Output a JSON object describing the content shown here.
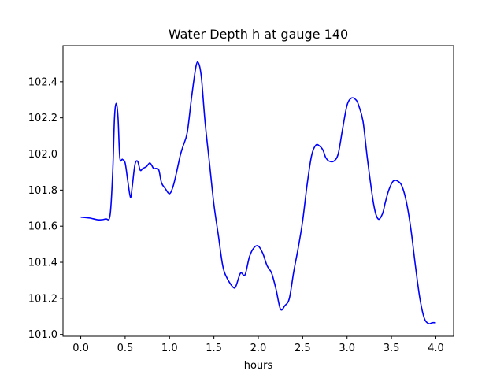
{
  "chart_data": {
    "type": "line",
    "title": "Water Depth h at gauge 140",
    "xlabel": "hours",
    "ylabel": "",
    "xlim": [
      -0.2,
      4.2
    ],
    "ylim": [
      100.99,
      102.6
    ],
    "x_ticks": [
      0.0,
      0.5,
      1.0,
      1.5,
      2.0,
      2.5,
      3.0,
      3.5,
      4.0
    ],
    "x_tick_labels": [
      "0.0",
      "0.5",
      "1.0",
      "1.5",
      "2.0",
      "2.5",
      "3.0",
      "3.5",
      "4.0"
    ],
    "y_ticks": [
      101.0,
      101.2,
      101.4,
      101.6,
      101.8,
      102.0,
      102.2,
      102.4
    ],
    "y_tick_labels": [
      "101.0",
      "101.2",
      "101.4",
      "101.6",
      "101.8",
      "102.0",
      "102.2",
      "102.4"
    ],
    "grid": false,
    "series": [
      {
        "color": "#0000ff",
        "x": [
          0.0,
          0.1,
          0.2,
          0.28,
          0.33,
          0.36,
          0.38,
          0.4,
          0.42,
          0.44,
          0.47,
          0.5,
          0.53,
          0.56,
          0.58,
          0.61,
          0.64,
          0.67,
          0.7,
          0.74,
          0.78,
          0.82,
          0.85,
          0.88,
          0.91,
          0.95,
          1.0,
          1.04,
          1.08,
          1.12,
          1.15,
          1.2,
          1.25,
          1.3,
          1.33,
          1.36,
          1.4,
          1.45,
          1.5,
          1.55,
          1.6,
          1.65,
          1.72,
          1.75,
          1.8,
          1.85,
          1.9,
          1.95,
          2.0,
          2.05,
          2.1,
          2.15,
          2.2,
          2.25,
          2.3,
          2.35,
          2.4,
          2.45,
          2.5,
          2.55,
          2.6,
          2.65,
          2.7,
          2.73,
          2.76,
          2.8,
          2.85,
          2.9,
          2.95,
          3.0,
          3.05,
          3.1,
          3.13,
          3.18,
          3.23,
          3.3,
          3.35,
          3.4,
          3.43,
          3.47,
          3.52,
          3.57,
          3.62,
          3.67,
          3.72,
          3.77,
          3.82,
          3.87,
          3.92,
          3.96,
          4.0
        ],
        "y": [
          101.65,
          101.645,
          101.635,
          101.64,
          101.66,
          101.9,
          102.2,
          102.28,
          102.2,
          101.98,
          101.97,
          101.95,
          101.85,
          101.76,
          101.82,
          101.94,
          101.96,
          101.91,
          101.92,
          101.93,
          101.95,
          101.92,
          101.92,
          101.91,
          101.84,
          101.81,
          101.78,
          101.82,
          101.9,
          101.99,
          102.04,
          102.12,
          102.32,
          102.49,
          102.5,
          102.42,
          102.18,
          101.95,
          101.72,
          101.55,
          101.38,
          101.31,
          101.26,
          101.27,
          101.34,
          101.33,
          101.43,
          101.48,
          101.49,
          101.45,
          101.38,
          101.34,
          101.25,
          101.14,
          101.16,
          101.2,
          101.35,
          101.48,
          101.63,
          101.83,
          101.99,
          102.05,
          102.04,
          102.02,
          101.98,
          101.96,
          101.96,
          102.0,
          102.14,
          102.27,
          102.31,
          102.3,
          102.27,
          102.18,
          101.97,
          101.72,
          101.64,
          101.67,
          101.73,
          101.8,
          101.85,
          101.85,
          101.82,
          101.73,
          101.58,
          101.38,
          101.2,
          101.09,
          101.06,
          101.065,
          101.065
        ]
      }
    ]
  }
}
